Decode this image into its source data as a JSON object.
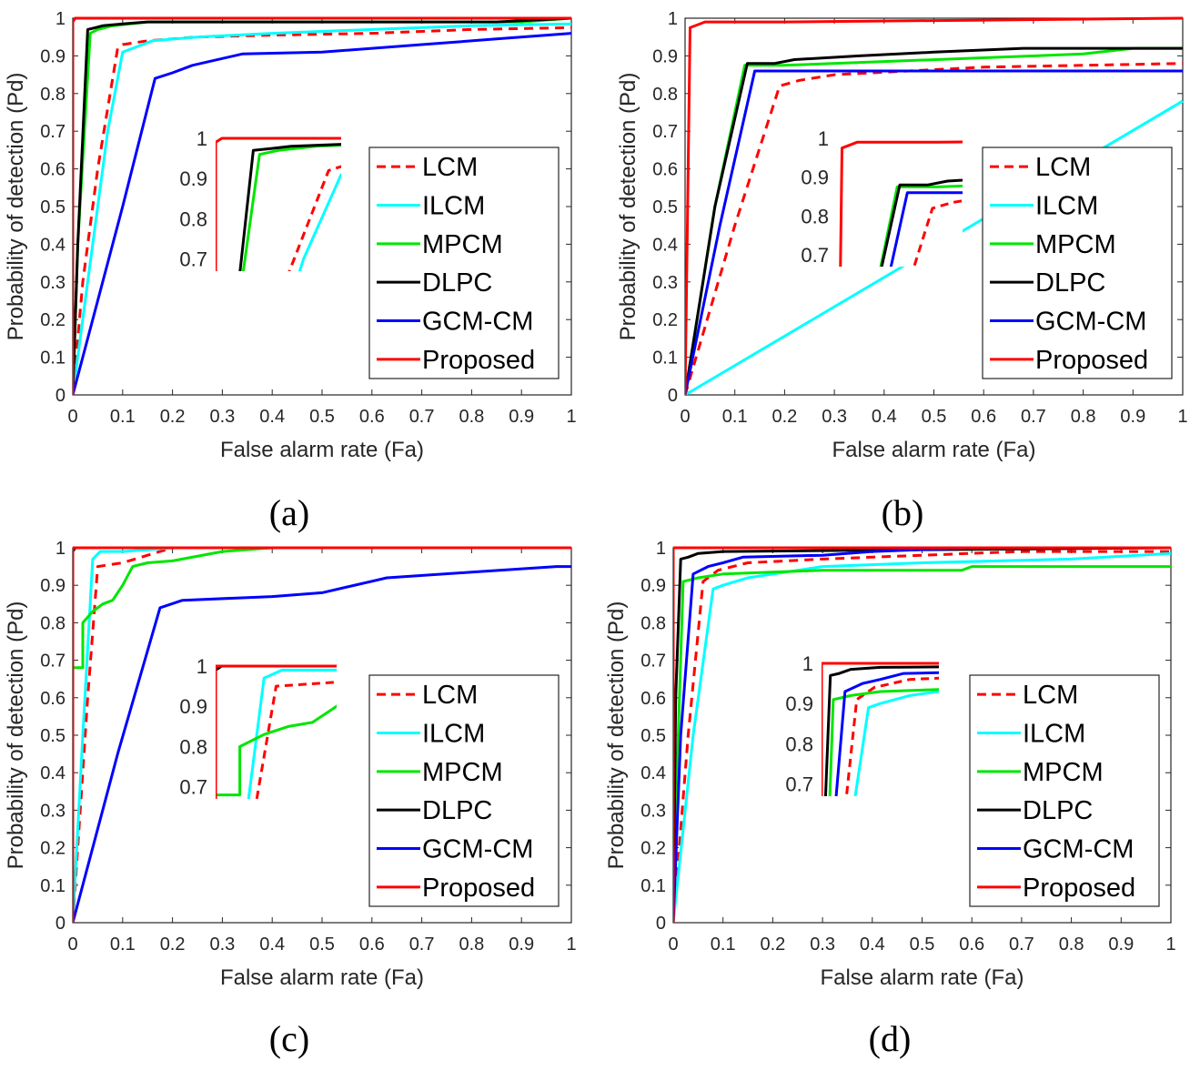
{
  "chart_data": [
    {
      "type": "line",
      "panel": "(a)",
      "xlabel": "False alarm rate (Fa)",
      "ylabel": "Probability of detection (Pd)",
      "xlim": [
        0,
        1
      ],
      "ylim": [
        0,
        1
      ],
      "xticks": [
        "0",
        "0.1",
        "0.2",
        "0.3",
        "0.4",
        "0.5",
        "0.6",
        "0.7",
        "0.8",
        "0.9",
        "1"
      ],
      "yticks": [
        "0",
        "0.1",
        "0.2",
        "0.3",
        "0.4",
        "0.5",
        "0.6",
        "0.7",
        "0.8",
        "0.9",
        "1"
      ],
      "inset": {
        "xlim": [
          0,
          0.1
        ],
        "ylim": [
          0.67,
          1.0
        ],
        "yticks": [
          "0.7",
          "0.8",
          "0.9",
          "1"
        ]
      },
      "legend_position": "right",
      "series": [
        {
          "name": "LCM",
          "color": "#ff0000",
          "dashed": true,
          "x": [
            0,
            0.02,
            0.05,
            0.09,
            0.1,
            0.15,
            0.25,
            0.4,
            0.6,
            0.8,
            1.0
          ],
          "y": [
            0,
            0.3,
            0.6,
            0.92,
            0.93,
            0.94,
            0.95,
            0.955,
            0.96,
            0.97,
            0.975
          ]
        },
        {
          "name": "ILCM",
          "color": "#00ffff",
          "dashed": false,
          "x": [
            0,
            0.03,
            0.07,
            0.1,
            0.12,
            0.16,
            0.25,
            0.4,
            0.6,
            0.8,
            1.0
          ],
          "y": [
            0,
            0.3,
            0.7,
            0.91,
            0.92,
            0.94,
            0.95,
            0.96,
            0.97,
            0.98,
            0.985
          ]
        },
        {
          "name": "MPCM",
          "color": "#00e600",
          "dashed": false,
          "x": [
            0,
            0.01,
            0.035,
            0.05,
            0.08,
            0.15,
            0.3,
            0.6,
            0.9,
            1.0
          ],
          "y": [
            0,
            0.4,
            0.96,
            0.97,
            0.98,
            0.99,
            0.99,
            0.99,
            0.99,
            1.0
          ]
        },
        {
          "name": "DLPC",
          "color": "#000000",
          "dashed": false,
          "x": [
            0,
            0.01,
            0.03,
            0.045,
            0.06,
            0.1,
            0.15,
            0.3,
            0.6,
            0.85,
            1.0
          ],
          "y": [
            0,
            0.4,
            0.97,
            0.975,
            0.98,
            0.985,
            0.99,
            0.99,
            0.99,
            0.99,
            1.0
          ]
        },
        {
          "name": "GCM-CM",
          "color": "#0000ff",
          "dashed": false,
          "x": [
            0,
            0.1,
            0.165,
            0.2,
            0.24,
            0.34,
            0.5,
            0.7,
            0.85,
            1.0
          ],
          "y": [
            0,
            0.5,
            0.84,
            0.855,
            0.875,
            0.905,
            0.91,
            0.93,
            0.945,
            0.96
          ]
        },
        {
          "name": "Proposed",
          "color": "#ff0000",
          "dashed": false,
          "x": [
            0,
            0.0,
            0.005,
            0.1,
            0.5,
            1.0
          ],
          "y": [
            0,
            0.99,
            1.0,
            1.0,
            1.0,
            1.0
          ]
        }
      ]
    },
    {
      "type": "line",
      "panel": "(b)",
      "xlabel": "False alarm rate (Fa)",
      "ylabel": "Probability of detection (Pd)",
      "xlim": [
        0,
        1
      ],
      "ylim": [
        0,
        1
      ],
      "xticks": [
        "0",
        "0.1",
        "0.2",
        "0.3",
        "0.4",
        "0.5",
        "0.6",
        "0.7",
        "0.8",
        "0.9",
        "1"
      ],
      "yticks": [
        "0",
        "0.1",
        "0.2",
        "0.3",
        "0.4",
        "0.5",
        "0.6",
        "0.7",
        "0.8",
        "0.9",
        "1"
      ],
      "inset": {
        "xlim": [
          0,
          0.25
        ],
        "ylim": [
          0.67,
          1.0
        ],
        "yticks": [
          "0.7",
          "0.8",
          "0.9",
          "1"
        ]
      },
      "legend_position": "right",
      "series": [
        {
          "name": "LCM",
          "color": "#ff0000",
          "dashed": true,
          "x": [
            0,
            0.1,
            0.19,
            0.23,
            0.3,
            0.45,
            0.6,
            0.8,
            1.0
          ],
          "y": [
            0,
            0.45,
            0.82,
            0.835,
            0.85,
            0.86,
            0.87,
            0.875,
            0.88
          ]
        },
        {
          "name": "ILCM",
          "color": "#00ffff",
          "dashed": false,
          "x": [
            0,
            0.5,
            1.0
          ],
          "y": [
            0,
            0.39,
            0.78
          ]
        },
        {
          "name": "MPCM",
          "color": "#00e600",
          "dashed": false,
          "x": [
            0,
            0.06,
            0.12,
            0.2,
            0.4,
            0.6,
            0.8,
            0.9,
            1.0
          ],
          "y": [
            0,
            0.5,
            0.875,
            0.875,
            0.885,
            0.895,
            0.905,
            0.92,
            0.92
          ]
        },
        {
          "name": "DLPC",
          "color": "#000000",
          "dashed": false,
          "x": [
            0,
            0.06,
            0.125,
            0.18,
            0.22,
            0.35,
            0.5,
            0.68,
            0.9,
            1.0
          ],
          "y": [
            0,
            0.5,
            0.88,
            0.88,
            0.89,
            0.9,
            0.91,
            0.92,
            0.92,
            0.92
          ]
        },
        {
          "name": "GCM-CM",
          "color": "#0000ff",
          "dashed": false,
          "x": [
            0,
            0.07,
            0.14,
            0.3,
            0.6,
            1.0
          ],
          "y": [
            0,
            0.45,
            0.86,
            0.86,
            0.86,
            0.86
          ]
        },
        {
          "name": "Proposed",
          "color": "#ff0000",
          "dashed": false,
          "x": [
            0,
            0.01,
            0.04,
            0.2,
            0.6,
            1.0
          ],
          "y": [
            0,
            0.975,
            0.99,
            0.99,
            0.995,
            1.0
          ]
        }
      ]
    },
    {
      "type": "line",
      "panel": "(c)",
      "xlabel": "False alarm rate (Fa)",
      "ylabel": "Probability of detection (Pd)",
      "xlim": [
        0,
        1
      ],
      "ylim": [
        0,
        1
      ],
      "xticks": [
        "0",
        "0.1",
        "0.2",
        "0.3",
        "0.4",
        "0.5",
        "0.6",
        "0.7",
        "0.8",
        "0.9",
        "1"
      ],
      "yticks": [
        "0",
        "0.1",
        "0.2",
        "0.3",
        "0.4",
        "0.5",
        "0.6",
        "0.7",
        "0.8",
        "0.9",
        "1"
      ],
      "inset": {
        "xlim": [
          0,
          0.1
        ],
        "ylim": [
          0.67,
          1.0
        ],
        "yticks": [
          "0.7",
          "0.8",
          "0.9",
          "1"
        ]
      },
      "legend_position": "right",
      "series": [
        {
          "name": "LCM",
          "color": "#ff0000",
          "dashed": true,
          "x": [
            0,
            0.03,
            0.05,
            0.1,
            0.15,
            0.2,
            0.5,
            1.0
          ],
          "y": [
            0,
            0.6,
            0.95,
            0.96,
            0.98,
            1.0,
            1.0,
            1.0
          ]
        },
        {
          "name": "ILCM",
          "color": "#00ffff",
          "dashed": false,
          "x": [
            0,
            0.02,
            0.04,
            0.055,
            0.1,
            0.2,
            0.5,
            1.0
          ],
          "y": [
            0,
            0.5,
            0.97,
            0.99,
            0.99,
            1.0,
            1.0,
            1.0
          ]
        },
        {
          "name": "MPCM",
          "color": "#00e600",
          "dashed": false,
          "x": [
            0,
            0.02,
            0.02,
            0.04,
            0.06,
            0.08,
            0.1,
            0.12,
            0.15,
            0.2,
            0.3,
            0.4,
            1.0
          ],
          "y": [
            0.68,
            0.68,
            0.8,
            0.83,
            0.85,
            0.86,
            0.9,
            0.95,
            0.96,
            0.965,
            0.99,
            1.0,
            1.0
          ]
        },
        {
          "name": "DLPC",
          "color": "#000000",
          "dashed": false,
          "x": [
            0,
            0.0,
            0.005,
            0.5,
            1.0
          ],
          "y": [
            0,
            0.99,
            1.0,
            1.0,
            1.0
          ]
        },
        {
          "name": "GCM-CM",
          "color": "#0000ff",
          "dashed": false,
          "x": [
            0,
            0.09,
            0.175,
            0.22,
            0.4,
            0.5,
            0.63,
            0.8,
            0.97,
            1.0
          ],
          "y": [
            0,
            0.45,
            0.84,
            0.86,
            0.87,
            0.88,
            0.92,
            0.935,
            0.95,
            0.95
          ]
        },
        {
          "name": "Proposed",
          "color": "#ff0000",
          "dashed": false,
          "x": [
            0,
            0.0,
            0.003,
            0.5,
            1.0
          ],
          "y": [
            0,
            1.0,
            1.0,
            1.0,
            1.0
          ]
        }
      ]
    },
    {
      "type": "line",
      "panel": "(d)",
      "xlabel": "False alarm rate (Fa)",
      "ylabel": "Probability of detection (Pd)",
      "xlim": [
        0,
        1
      ],
      "ylim": [
        0,
        1
      ],
      "xticks": [
        "0",
        "0.1",
        "0.2",
        "0.3",
        "0.4",
        "0.5",
        "0.6",
        "0.7",
        "0.8",
        "0.9",
        "1"
      ],
      "yticks": [
        "0",
        "0.1",
        "0.2",
        "0.3",
        "0.4",
        "0.5",
        "0.6",
        "0.7",
        "0.8",
        "0.9",
        "1"
      ],
      "inset": {
        "xlim": [
          0,
          0.2
        ],
        "ylim": [
          0.67,
          1.0
        ],
        "yticks": [
          "0.7",
          "0.8",
          "0.9",
          "1"
        ]
      },
      "legend_position": "right",
      "series": [
        {
          "name": "LCM",
          "color": "#ff0000",
          "dashed": true,
          "x": [
            0,
            0.03,
            0.06,
            0.09,
            0.15,
            0.3,
            0.5,
            0.7,
            1.0
          ],
          "y": [
            0,
            0.5,
            0.91,
            0.94,
            0.96,
            0.97,
            0.98,
            0.99,
            0.99
          ]
        },
        {
          "name": "ILCM",
          "color": "#00ffff",
          "dashed": false,
          "x": [
            0,
            0.04,
            0.08,
            0.1,
            0.15,
            0.3,
            0.5,
            0.8,
            1.0
          ],
          "y": [
            0,
            0.5,
            0.89,
            0.9,
            0.92,
            0.95,
            0.96,
            0.97,
            0.985
          ]
        },
        {
          "name": "MPCM",
          "color": "#00e600",
          "dashed": false,
          "x": [
            0,
            0.01,
            0.02,
            0.05,
            0.1,
            0.3,
            0.58,
            0.6,
            1.0
          ],
          "y": [
            0,
            0.5,
            0.91,
            0.92,
            0.93,
            0.94,
            0.94,
            0.95,
            0.95
          ]
        },
        {
          "name": "DLPC",
          "color": "#000000",
          "dashed": false,
          "x": [
            0,
            0.005,
            0.015,
            0.03,
            0.05,
            0.1,
            0.5,
            1.0
          ],
          "y": [
            0,
            0.6,
            0.97,
            0.975,
            0.985,
            0.99,
            0.995,
            1.0
          ]
        },
        {
          "name": "GCM-CM",
          "color": "#0000ff",
          "dashed": false,
          "x": [
            0,
            0.015,
            0.04,
            0.07,
            0.1,
            0.14,
            0.3,
            0.4,
            0.6,
            1.0
          ],
          "y": [
            0,
            0.5,
            0.93,
            0.95,
            0.96,
            0.975,
            0.98,
            0.99,
            1.0,
            1.0
          ]
        },
        {
          "name": "Proposed",
          "color": "#ff0000",
          "dashed": false,
          "x": [
            0,
            0.0,
            0.005,
            0.5,
            1.0
          ],
          "y": [
            0,
            1.0,
            1.0,
            1.0,
            1.0
          ]
        }
      ]
    }
  ],
  "captions": [
    "(a)",
    "(b)",
    "(c)",
    "(d)"
  ]
}
